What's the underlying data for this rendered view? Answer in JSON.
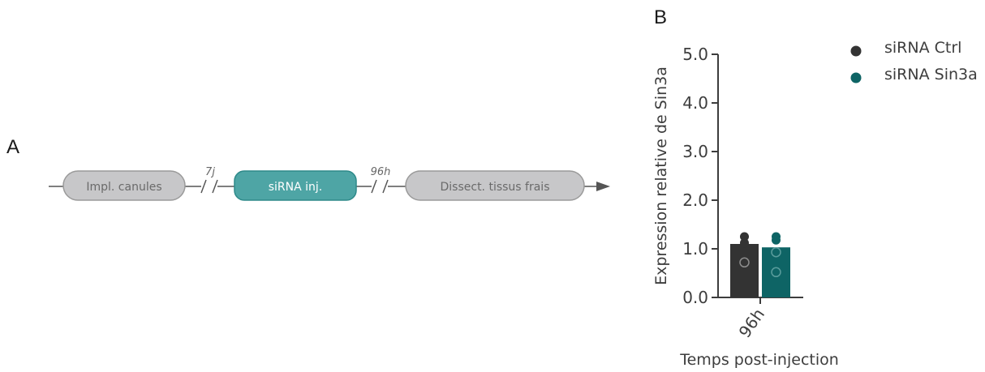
{
  "panel_a": {
    "letter": "A",
    "steps": [
      {
        "label": "Impl. canules",
        "highlight": false
      },
      {
        "label": "siRNA inj.",
        "highlight": true
      },
      {
        "label": "Dissect. tissus frais",
        "highlight": false
      }
    ],
    "intervals": [
      "7j",
      "96h"
    ],
    "colors": {
      "step_fill": "#c7c7c9",
      "step_stroke": "#9a9a9a",
      "step_text": "#6a6a6a",
      "highlight_fill": "#4ea5a5",
      "highlight_stroke": "#2e8a8a",
      "highlight_text": "#ffffff",
      "line": "#555555"
    }
  },
  "panel_b": {
    "letter": "B"
  },
  "chart_data": {
    "type": "bar",
    "categories": [
      "96h"
    ],
    "series": [
      {
        "name": "siRNA Ctrl",
        "values": [
          1.1
        ],
        "points": [
          1.25,
          1.12,
          0.72
        ],
        "color": "#333333"
      },
      {
        "name": "siRNA Sin3a",
        "values": [
          1.03
        ],
        "points": [
          1.25,
          1.18,
          0.93,
          0.52
        ],
        "color": "#0e6465"
      }
    ],
    "xlabel": "Temps post-injection",
    "ylabel": "Expression relative de Sin3a",
    "ylim": [
      0,
      5
    ],
    "yticks": [
      "0.0",
      "1.0",
      "2.0",
      "3.0",
      "4.0",
      "5.0"
    ],
    "legend_position": "top-right",
    "grid": false
  }
}
